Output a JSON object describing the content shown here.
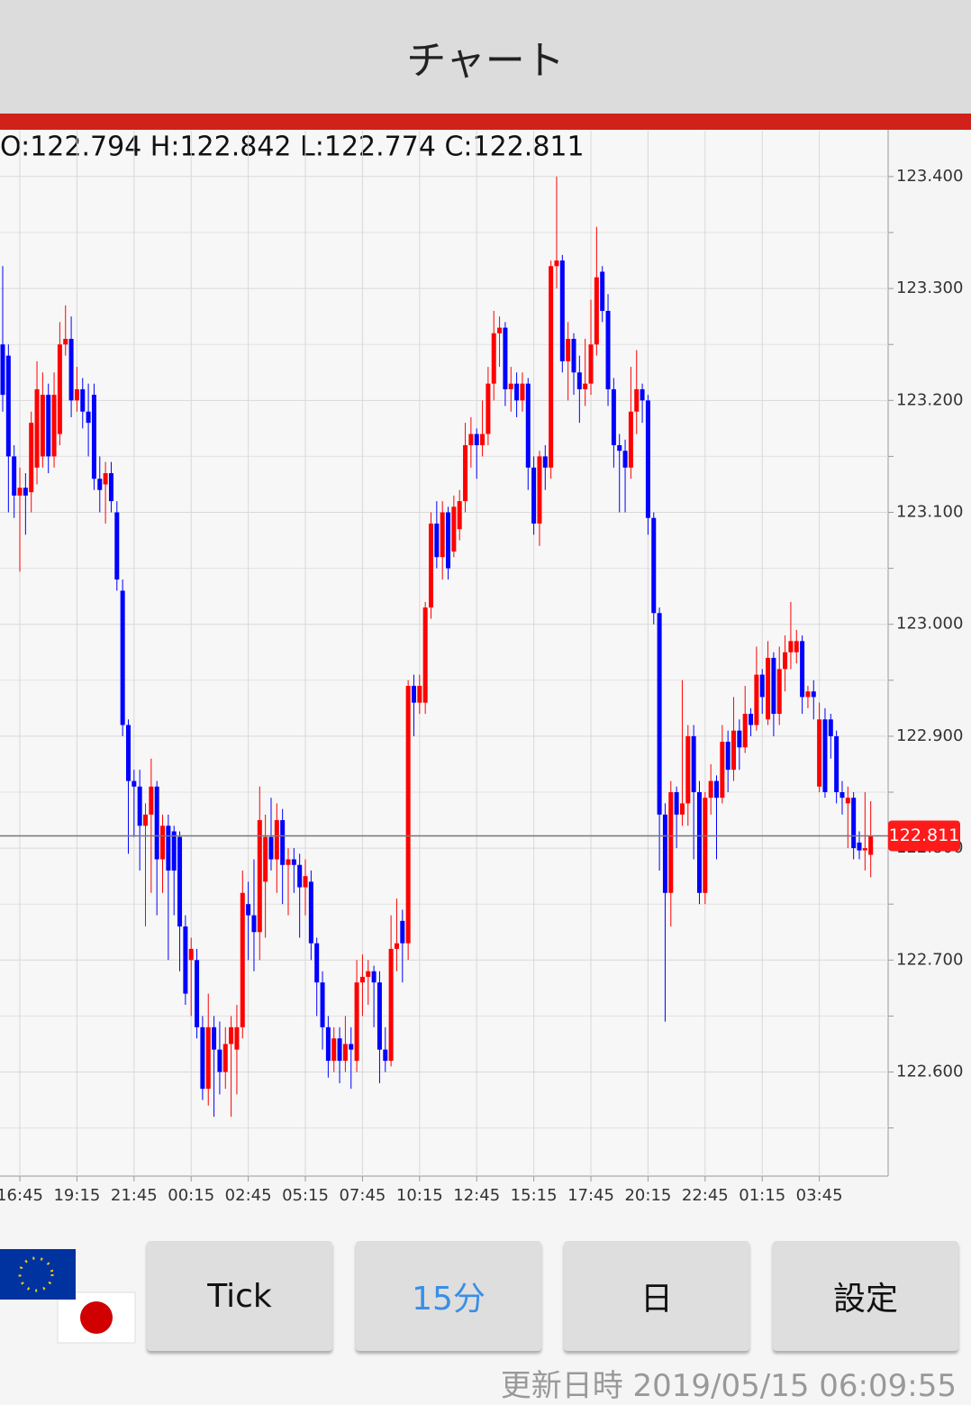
{
  "header": {
    "title": "チャート"
  },
  "info": "O:122.794 H:122.842 L:122.774 C:122.811",
  "chart_data": {
    "type": "candlestick",
    "categories": [
      null,
      null,
      null,
      "16:45",
      null,
      null,
      null,
      null,
      null,
      null,
      null,
      null,
      null,
      "19:15",
      null,
      null,
      null,
      null,
      null,
      null,
      null,
      null,
      null,
      "21:45",
      null,
      null,
      null,
      null,
      null,
      null,
      null,
      null,
      null,
      "00:15",
      null,
      null,
      null,
      null,
      null,
      null,
      null,
      null,
      null,
      "02:45",
      null,
      null,
      null,
      null,
      null,
      null,
      null,
      null,
      null,
      "05:15",
      null,
      null,
      null,
      null,
      null,
      null,
      null,
      null,
      null,
      "07:45",
      null,
      null,
      null,
      null,
      null,
      null,
      null,
      null,
      null,
      "10:15",
      null,
      null,
      null,
      null,
      null,
      null,
      null,
      null,
      null,
      "12:45",
      null,
      null,
      null,
      null,
      null,
      null,
      null,
      null,
      null,
      "15:15",
      null,
      null,
      null,
      null,
      null,
      null,
      null,
      null,
      null,
      "17:45",
      null,
      null,
      null,
      null,
      null,
      null,
      null,
      null,
      null,
      "20:15",
      null,
      null,
      null,
      null,
      null,
      null,
      null,
      null,
      null,
      "22:45",
      null,
      null,
      null,
      null,
      null,
      null,
      null,
      null,
      null,
      "01:15",
      null,
      null,
      null,
      null,
      null,
      null,
      null,
      null,
      null,
      "03:45",
      null,
      null,
      null,
      null,
      null,
      null,
      null,
      null,
      null
    ],
    "ohlc": [
      [
        123.25,
        123.32,
        123.19,
        123.205
      ],
      [
        123.24,
        123.25,
        123.1,
        123.15
      ],
      [
        123.15,
        123.16,
        123.095,
        123.115
      ],
      [
        123.115,
        123.14,
        123.047,
        123.122
      ],
      [
        123.122,
        123.135,
        123.08,
        123.115
      ],
      [
        123.118,
        123.19,
        123.1,
        123.18
      ],
      [
        123.14,
        123.235,
        123.125,
        123.21
      ],
      [
        123.15,
        123.225,
        123.14,
        123.205
      ],
      [
        123.205,
        123.215,
        123.135,
        123.15
      ],
      [
        123.15,
        123.225,
        123.14,
        123.205
      ],
      [
        123.17,
        123.27,
        123.16,
        123.25
      ],
      [
        123.25,
        123.285,
        123.24,
        123.255
      ],
      [
        123.255,
        123.275,
        123.185,
        123.2
      ],
      [
        123.2,
        123.23,
        123.19,
        123.21
      ],
      [
        123.21,
        123.22,
        123.175,
        123.19
      ],
      [
        123.19,
        123.215,
        123.15,
        123.18
      ],
      [
        123.205,
        123.215,
        123.12,
        123.13
      ],
      [
        123.13,
        123.15,
        123.1,
        123.12
      ],
      [
        123.125,
        123.145,
        123.09,
        123.135
      ],
      [
        123.135,
        123.145,
        123.1,
        123.11
      ],
      [
        123.1,
        123.11,
        123.03,
        123.04
      ],
      [
        123.03,
        123.04,
        122.9,
        122.91
      ],
      [
        122.91,
        122.915,
        122.795,
        122.86
      ],
      [
        122.86,
        122.87,
        122.81,
        122.855
      ],
      [
        122.855,
        122.87,
        122.78,
        122.82
      ],
      [
        122.82,
        122.84,
        122.73,
        122.83
      ],
      [
        122.83,
        122.88,
        122.76,
        122.855
      ],
      [
        122.855,
        122.86,
        122.74,
        122.79
      ],
      [
        122.79,
        122.83,
        122.76,
        122.82
      ],
      [
        122.82,
        122.83,
        122.7,
        122.78
      ],
      [
        122.815,
        122.82,
        122.74,
        122.78
      ],
      [
        122.81,
        122.815,
        122.69,
        122.73
      ],
      [
        122.73,
        122.74,
        122.66,
        122.67
      ],
      [
        122.7,
        122.72,
        122.65,
        122.71
      ],
      [
        122.7,
        122.71,
        122.63,
        122.64
      ],
      [
        122.64,
        122.65,
        122.575,
        122.585
      ],
      [
        122.585,
        122.67,
        122.57,
        122.64
      ],
      [
        122.64,
        122.65,
        122.56,
        122.62
      ],
      [
        122.62,
        122.645,
        122.58,
        122.6
      ],
      [
        122.6,
        122.64,
        122.585,
        122.625
      ],
      [
        122.625,
        122.65,
        122.56,
        122.64
      ],
      [
        122.62,
        122.66,
        122.58,
        122.64
      ],
      [
        122.64,
        122.78,
        122.63,
        122.76
      ],
      [
        122.75,
        122.77,
        122.7,
        122.74
      ],
      [
        122.74,
        122.79,
        122.69,
        122.725
      ],
      [
        122.725,
        122.855,
        122.7,
        122.825
      ],
      [
        122.77,
        122.83,
        122.72,
        122.81
      ],
      [
        122.81,
        122.845,
        122.78,
        122.79
      ],
      [
        122.79,
        122.84,
        122.76,
        122.825
      ],
      [
        122.825,
        122.835,
        122.75,
        122.785
      ],
      [
        122.785,
        122.8,
        122.74,
        122.79
      ],
      [
        122.79,
        122.8,
        122.76,
        122.785
      ],
      [
        122.785,
        122.795,
        122.72,
        122.765
      ],
      [
        122.765,
        122.79,
        122.74,
        122.775
      ],
      [
        122.77,
        122.78,
        122.7,
        122.715
      ],
      [
        122.715,
        122.72,
        122.65,
        122.68
      ],
      [
        122.68,
        122.69,
        122.62,
        122.64
      ],
      [
        122.64,
        122.65,
        122.595,
        122.61
      ],
      [
        122.61,
        122.64,
        122.6,
        122.63
      ],
      [
        122.63,
        122.64,
        122.59,
        122.61
      ],
      [
        122.61,
        122.65,
        122.6,
        122.625
      ],
      [
        122.625,
        122.64,
        122.585,
        122.62
      ],
      [
        122.61,
        122.7,
        122.6,
        122.68
      ],
      [
        122.68,
        122.705,
        122.65,
        122.685
      ],
      [
        122.685,
        122.7,
        122.66,
        122.69
      ],
      [
        122.69,
        122.695,
        122.64,
        122.68
      ],
      [
        122.68,
        122.69,
        122.59,
        122.62
      ],
      [
        122.62,
        122.64,
        122.6,
        122.61
      ],
      [
        122.61,
        122.74,
        122.605,
        122.71
      ],
      [
        122.71,
        122.755,
        122.69,
        122.715
      ],
      [
        122.735,
        122.745,
        122.68,
        122.715
      ],
      [
        122.715,
        122.95,
        122.7,
        122.945
      ],
      [
        122.945,
        122.955,
        122.9,
        122.93
      ],
      [
        122.93,
        122.955,
        122.92,
        122.945
      ],
      [
        122.93,
        123.02,
        122.92,
        123.015
      ],
      [
        123.015,
        123.1,
        123.005,
        123.09
      ],
      [
        123.09,
        123.11,
        123.05,
        123.06
      ],
      [
        123.06,
        123.11,
        123.04,
        123.1
      ],
      [
        123.1,
        123.105,
        123.04,
        123.05
      ],
      [
        123.065,
        123.115,
        123.06,
        123.105
      ],
      [
        123.085,
        123.12,
        123.075,
        123.11
      ],
      [
        123.11,
        123.18,
        123.1,
        123.16
      ],
      [
        123.16,
        123.185,
        123.14,
        123.17
      ],
      [
        123.17,
        123.175,
        123.13,
        123.16
      ],
      [
        123.16,
        123.2,
        123.15,
        123.17
      ],
      [
        123.17,
        123.23,
        123.16,
        123.215
      ],
      [
        123.215,
        123.28,
        123.2,
        123.26
      ],
      [
        123.26,
        123.275,
        123.23,
        123.265
      ],
      [
        123.265,
        123.27,
        123.195,
        123.21
      ],
      [
        123.21,
        123.23,
        123.19,
        123.215
      ],
      [
        123.215,
        123.225,
        123.185,
        123.2
      ],
      [
        123.2,
        123.225,
        123.19,
        123.215
      ],
      [
        123.215,
        123.22,
        123.12,
        123.14
      ],
      [
        123.14,
        123.15,
        123.08,
        123.09
      ],
      [
        123.09,
        123.155,
        123.07,
        123.15
      ],
      [
        123.15,
        123.16,
        123.12,
        123.14
      ],
      [
        123.14,
        123.325,
        123.13,
        123.32
      ],
      [
        123.32,
        123.4,
        123.3,
        123.325
      ],
      [
        123.325,
        123.33,
        123.225,
        123.235
      ],
      [
        123.235,
        123.27,
        123.2,
        123.255
      ],
      [
        123.255,
        123.26,
        123.205,
        123.225
      ],
      [
        123.225,
        123.24,
        123.18,
        123.21
      ],
      [
        123.21,
        123.255,
        123.195,
        123.215
      ],
      [
        123.215,
        123.29,
        123.205,
        123.25
      ],
      [
        123.25,
        123.355,
        123.24,
        123.31
      ],
      [
        123.315,
        123.32,
        123.27,
        123.28
      ],
      [
        123.28,
        123.295,
        123.195,
        123.21
      ],
      [
        123.21,
        123.22,
        123.14,
        123.16
      ],
      [
        123.16,
        123.17,
        123.1,
        123.155
      ],
      [
        123.155,
        123.165,
        123.1,
        123.14
      ],
      [
        123.14,
        123.23,
        123.13,
        123.19
      ],
      [
        123.19,
        123.245,
        123.17,
        123.21
      ],
      [
        123.21,
        123.215,
        123.18,
        123.2
      ],
      [
        123.2,
        123.205,
        123.08,
        123.095
      ],
      [
        123.095,
        123.1,
        123.0,
        123.01
      ],
      [
        123.01,
        123.015,
        122.78,
        122.83
      ],
      [
        122.83,
        122.84,
        122.645,
        122.76
      ],
      [
        122.76,
        122.86,
        122.73,
        122.85
      ],
      [
        122.85,
        122.855,
        122.8,
        122.83
      ],
      [
        122.83,
        122.95,
        122.82,
        122.84
      ],
      [
        122.84,
        122.91,
        122.82,
        122.9
      ],
      [
        122.9,
        122.91,
        122.79,
        122.85
      ],
      [
        122.85,
        122.86,
        122.75,
        122.76
      ],
      [
        122.76,
        122.85,
        122.75,
        122.845
      ],
      [
        122.845,
        122.875,
        122.83,
        122.86
      ],
      [
        122.86,
        122.865,
        122.79,
        122.845
      ],
      [
        122.845,
        122.91,
        122.84,
        122.895
      ],
      [
        122.895,
        122.905,
        122.85,
        122.87
      ],
      [
        122.87,
        122.935,
        122.86,
        122.905
      ],
      [
        122.905,
        122.915,
        122.87,
        122.89
      ],
      [
        122.89,
        122.945,
        122.885,
        122.92
      ],
      [
        122.92,
        122.925,
        122.9,
        122.91
      ],
      [
        122.91,
        122.98,
        122.905,
        122.955
      ],
      [
        122.955,
        122.96,
        122.92,
        122.935
      ],
      [
        122.915,
        122.985,
        122.91,
        122.97
      ],
      [
        122.97,
        122.975,
        122.9,
        122.92
      ],
      [
        122.92,
        122.98,
        122.91,
        122.96
      ],
      [
        122.96,
        122.99,
        122.94,
        122.975
      ],
      [
        122.975,
        123.02,
        122.96,
        122.985
      ],
      [
        122.975,
        122.995,
        122.965,
        122.985
      ],
      [
        122.985,
        122.99,
        122.92,
        122.935
      ],
      [
        122.935,
        122.945,
        122.925,
        122.94
      ],
      [
        122.94,
        122.95,
        122.915,
        122.935
      ],
      [
        122.855,
        122.93,
        122.85,
        122.915
      ],
      [
        122.915,
        122.925,
        122.845,
        122.85
      ],
      [
        122.915,
        122.92,
        122.88,
        122.9
      ],
      [
        122.9,
        122.905,
        122.84,
        122.85
      ],
      [
        122.85,
        122.86,
        122.83,
        122.845
      ],
      [
        122.84,
        122.855,
        122.8,
        122.845
      ],
      [
        122.845,
        122.85,
        122.79,
        122.8
      ],
      [
        122.805,
        122.815,
        122.79,
        122.798
      ],
      [
        122.798,
        122.85,
        122.78,
        122.8
      ],
      [
        122.794,
        122.842,
        122.774,
        122.811
      ]
    ],
    "up_color": "#ff0000",
    "down_color": "#0000ff",
    "ylim": [
      122.507,
      123.441
    ],
    "yticks": [
      {
        "value": 122.6,
        "label": "122.600"
      },
      {
        "value": 122.7,
        "label": "122.700"
      },
      {
        "value": 122.8,
        "label": "122.800"
      },
      {
        "value": 122.9,
        "label": "122.900"
      },
      {
        "value": 123.0,
        "label": "123.000"
      },
      {
        "value": 123.1,
        "label": "123.100"
      },
      {
        "value": 123.2,
        "label": "123.200"
      },
      {
        "value": 123.3,
        "label": "123.300"
      },
      {
        "value": 123.4,
        "label": "123.400"
      }
    ],
    "minor_yticks": [
      122.55,
      122.65,
      122.75,
      122.85,
      122.95,
      123.05,
      123.15,
      123.25,
      123.35
    ],
    "current_price": 122.811,
    "grid": true
  },
  "buttons": [
    "Tick",
    "15分",
    "日",
    "設定"
  ],
  "footer": {
    "updated": "更新日時 2019/05/15 06:09:55"
  }
}
